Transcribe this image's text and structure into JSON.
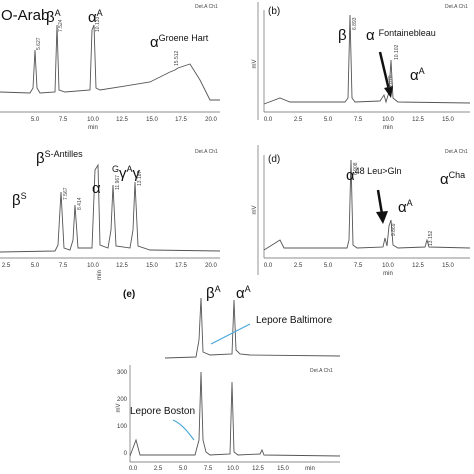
{
  "panels": [
    {
      "peaks": [
        {
          "base": "O-Arab"
        },
        {
          "base": "β",
          "sup": "A"
        },
        {
          "base": "α",
          "sup": "A"
        },
        {
          "base": "α",
          "sup": "Groene Hart"
        }
      ],
      "peak_labels": [
        "5.627",
        "7.524",
        "10.133",
        "15.512"
      ],
      "detector": "Det.A Ch1",
      "x_ticks": [
        "5.0",
        "7.5",
        "10.0",
        "12.5",
        "15.0",
        "17.5",
        "20.0"
      ],
      "x_unit": "min"
    },
    {
      "label": "(b)",
      "peaks": [
        {
          "base": "β"
        },
        {
          "base": "α",
          "sup": "Fontainebleau"
        },
        {
          "base": "α",
          "sup": "A"
        }
      ],
      "peak_labels": [
        "6.893",
        "9.870",
        "10.102"
      ],
      "detector": "Det.A Ch1",
      "y_unit": "mV",
      "x_ticks": [
        "0.0",
        "2.5",
        "5.0",
        "7.5",
        "10.0",
        "12.5",
        "15.0"
      ],
      "x_unit": "min"
    },
    {
      "peaks": [
        {
          "base": "β",
          "sup": "S-Antilles"
        },
        {
          "base": "β",
          "sup": "S"
        },
        {
          "base": "α"
        },
        {
          "sup": "G",
          "base": "γ",
          "sup_2": "A",
          "base_2": "γ"
        }
      ],
      "peak_labels": [
        "7.567",
        "8.414",
        "11.967",
        "13.187"
      ],
      "detector": "Det.A Ch1",
      "x_ticks": [
        "2.5",
        "5.0",
        "7.5",
        "10.0",
        "12.5",
        "15.0",
        "17.5",
        "20.0"
      ],
      "x_unit": "min"
    },
    {
      "label": "(d)",
      "peaks": [
        {
          "base": "α",
          "sup": "48 Leu>Gln"
        },
        {
          "base": "α",
          "sup": "A"
        },
        {
          "base": "α",
          "sup": "Cha"
        }
      ],
      "peak_labels": [
        "6.908",
        "9.869",
        "13.152"
      ],
      "detector": "Det.A Ch1",
      "y_unit": "mV",
      "x_ticks": [
        "0.0",
        "2.5",
        "5.0",
        "7.5",
        "10.0",
        "12.5",
        "15.0"
      ],
      "x_unit": "min"
    },
    {
      "label": "(e)",
      "peaks": [
        {
          "base": "β",
          "sup": "A"
        },
        {
          "base": "α",
          "sup": "A"
        }
      ],
      "annotations": [
        "Lepore Baltimore",
        "Lepore Boston"
      ],
      "detector": "Det.A Ch1",
      "y_unit": "mV",
      "y_ticks": [
        "300",
        "200",
        "100",
        "0"
      ],
      "x_ticks": [
        "0.0",
        "2.5",
        "5.0",
        "7.5",
        "10.0",
        "12.5",
        "15.0"
      ],
      "x_unit": "min"
    }
  ]
}
